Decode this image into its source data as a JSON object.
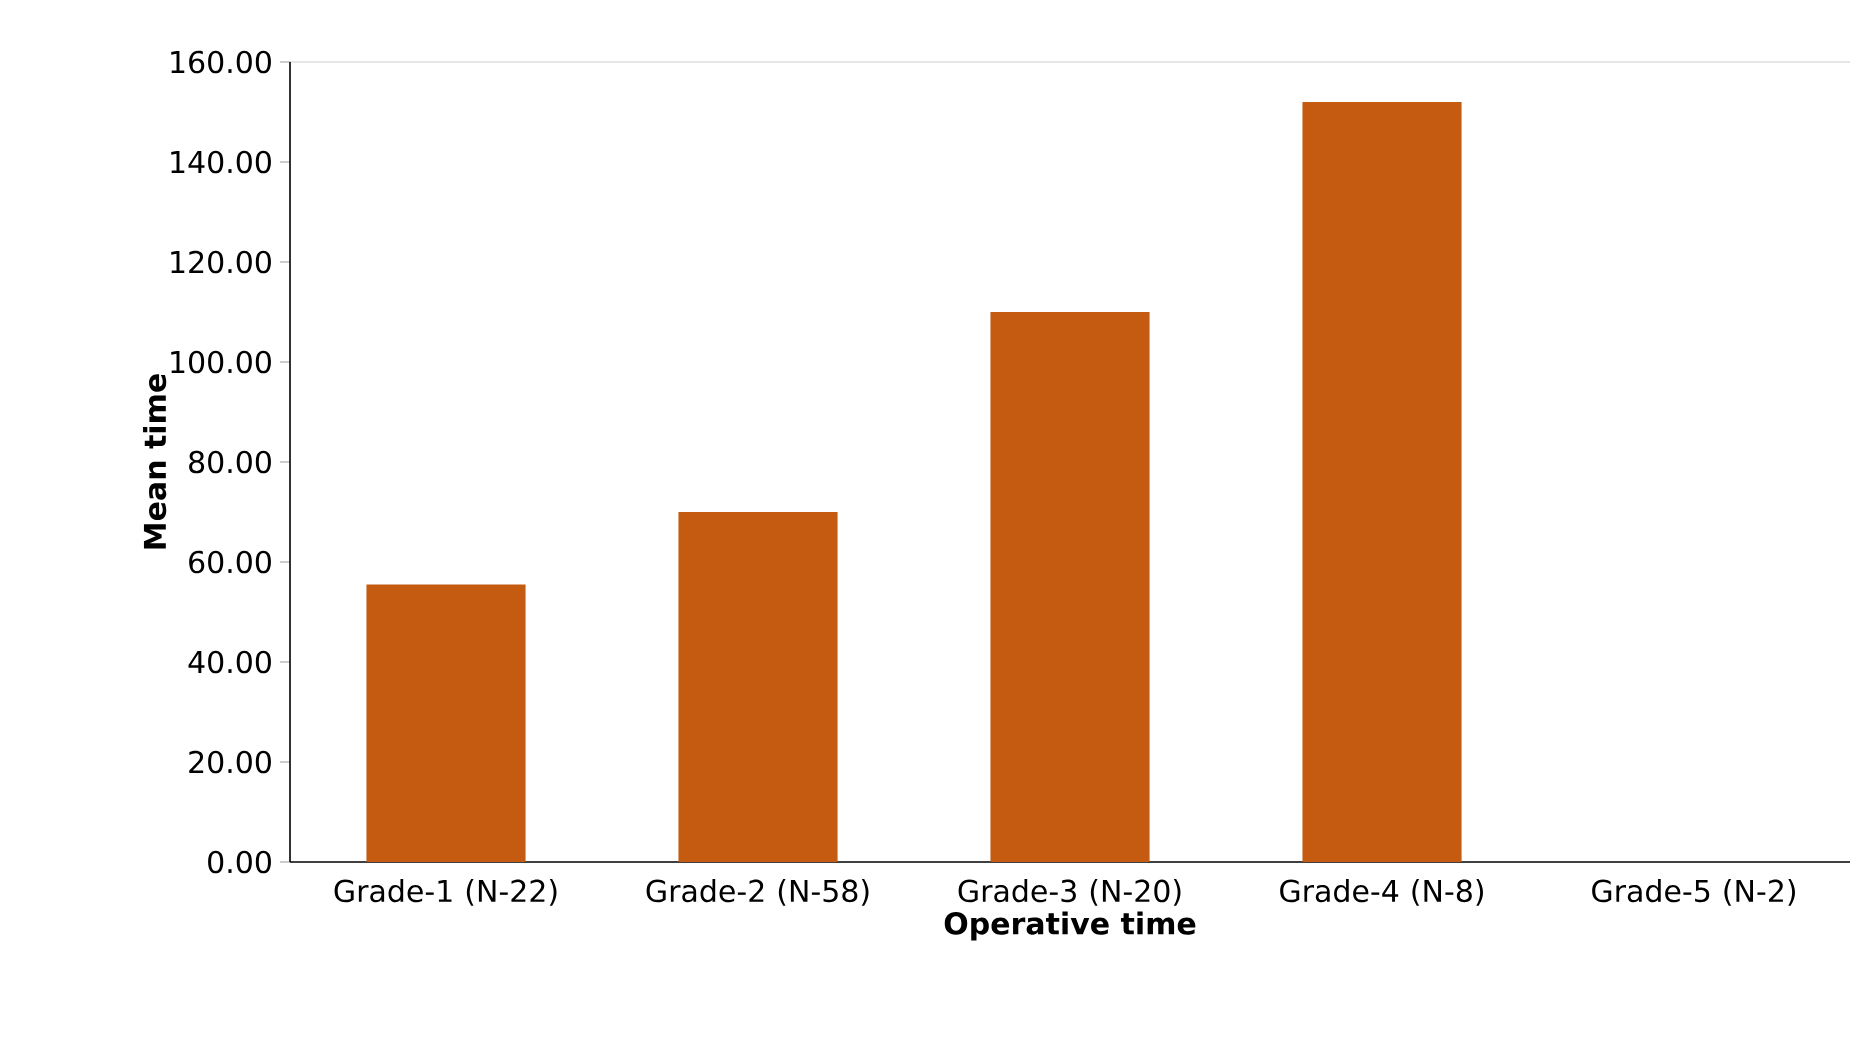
{
  "chart_data": {
    "type": "bar",
    "xlabel": "Operative time",
    "ylabel": "Mean time",
    "categories": [
      "Grade-1 (N-22)",
      "Grade-2 (N-58)",
      "Grade-3 (N-20)",
      "Grade-4 (N-8)",
      "Grade-5 (N-2)"
    ],
    "values": [
      55.5,
      70,
      110,
      152,
      0
    ],
    "color": "#c55a11",
    "ylim": [
      0,
      160
    ],
    "yticks": [
      {
        "value": 0,
        "label": "0.00"
      },
      {
        "value": 20,
        "label": "20.00"
      },
      {
        "value": 40,
        "label": "40.00"
      },
      {
        "value": 60,
        "label": "60.00"
      },
      {
        "value": 80,
        "label": "80.00"
      },
      {
        "value": 100,
        "label": "100.00"
      },
      {
        "value": 120,
        "label": "120.00"
      },
      {
        "value": 140,
        "label": "140.00"
      },
      {
        "value": 160,
        "label": "160.00"
      }
    ]
  }
}
